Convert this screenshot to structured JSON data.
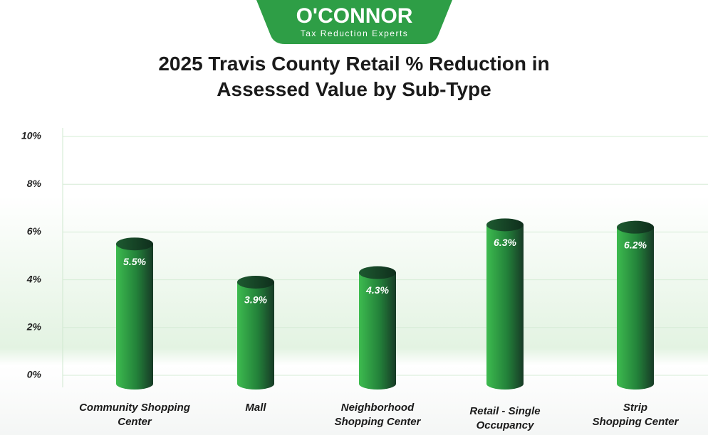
{
  "logo": {
    "name": "O'CONNOR",
    "tagline": "Tax Reduction Experts"
  },
  "chart_data": {
    "type": "bar",
    "title": "2025 Travis County Retail % Reduction in\nAssessed Value by Sub-Type",
    "categories": [
      "Community Shopping\nCenter",
      "Mall",
      "Neighborhood\nShopping Center",
      "Retail - Single\nOccupancy",
      "Strip\nShopping Center"
    ],
    "values": [
      5.5,
      3.9,
      4.3,
      6.3,
      6.2
    ],
    "value_labels": [
      "5.5%",
      "3.9%",
      "4.3%",
      "6.3%",
      "6.2%"
    ],
    "color": "#2e9e46",
    "ylim": [
      0,
      10
    ],
    "yticks": [
      {
        "value": 0,
        "label": "0%"
      },
      {
        "value": 2,
        "label": "2%"
      },
      {
        "value": 4,
        "label": "4%"
      },
      {
        "value": 6,
        "label": "6%"
      },
      {
        "value": 8,
        "label": "8%"
      },
      {
        "value": 10,
        "label": "10%"
      }
    ],
    "grid": true
  }
}
